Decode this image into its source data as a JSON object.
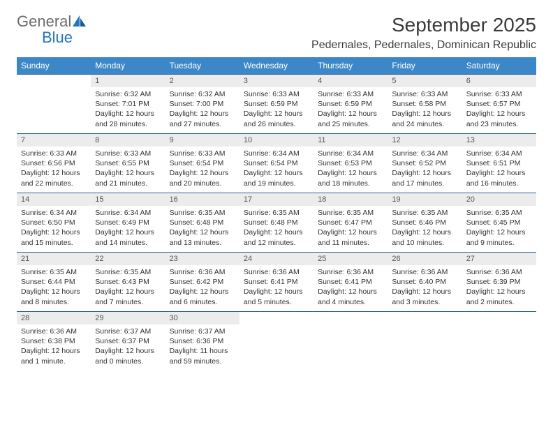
{
  "logo": {
    "text1": "General",
    "text2": "Blue"
  },
  "title": "September 2025",
  "location": "Pedernales, Pedernales, Dominican Republic",
  "colors": {
    "header_bg": "#3b87c8",
    "header_text": "#ffffff",
    "daynum_bg": "#ececec",
    "border": "#2f5f8f",
    "logo_gray": "#6b6b6b",
    "logo_blue": "#2176c1",
    "text": "#333333"
  },
  "day_names": [
    "Sunday",
    "Monday",
    "Tuesday",
    "Wednesday",
    "Thursday",
    "Friday",
    "Saturday"
  ],
  "weeks": [
    [
      {
        "n": "",
        "sunrise": "",
        "sunset": "",
        "daylight": ""
      },
      {
        "n": "1",
        "sunrise": "Sunrise: 6:32 AM",
        "sunset": "Sunset: 7:01 PM",
        "daylight": "Daylight: 12 hours and 28 minutes."
      },
      {
        "n": "2",
        "sunrise": "Sunrise: 6:32 AM",
        "sunset": "Sunset: 7:00 PM",
        "daylight": "Daylight: 12 hours and 27 minutes."
      },
      {
        "n": "3",
        "sunrise": "Sunrise: 6:33 AM",
        "sunset": "Sunset: 6:59 PM",
        "daylight": "Daylight: 12 hours and 26 minutes."
      },
      {
        "n": "4",
        "sunrise": "Sunrise: 6:33 AM",
        "sunset": "Sunset: 6:59 PM",
        "daylight": "Daylight: 12 hours and 25 minutes."
      },
      {
        "n": "5",
        "sunrise": "Sunrise: 6:33 AM",
        "sunset": "Sunset: 6:58 PM",
        "daylight": "Daylight: 12 hours and 24 minutes."
      },
      {
        "n": "6",
        "sunrise": "Sunrise: 6:33 AM",
        "sunset": "Sunset: 6:57 PM",
        "daylight": "Daylight: 12 hours and 23 minutes."
      }
    ],
    [
      {
        "n": "7",
        "sunrise": "Sunrise: 6:33 AM",
        "sunset": "Sunset: 6:56 PM",
        "daylight": "Daylight: 12 hours and 22 minutes."
      },
      {
        "n": "8",
        "sunrise": "Sunrise: 6:33 AM",
        "sunset": "Sunset: 6:55 PM",
        "daylight": "Daylight: 12 hours and 21 minutes."
      },
      {
        "n": "9",
        "sunrise": "Sunrise: 6:33 AM",
        "sunset": "Sunset: 6:54 PM",
        "daylight": "Daylight: 12 hours and 20 minutes."
      },
      {
        "n": "10",
        "sunrise": "Sunrise: 6:34 AM",
        "sunset": "Sunset: 6:54 PM",
        "daylight": "Daylight: 12 hours and 19 minutes."
      },
      {
        "n": "11",
        "sunrise": "Sunrise: 6:34 AM",
        "sunset": "Sunset: 6:53 PM",
        "daylight": "Daylight: 12 hours and 18 minutes."
      },
      {
        "n": "12",
        "sunrise": "Sunrise: 6:34 AM",
        "sunset": "Sunset: 6:52 PM",
        "daylight": "Daylight: 12 hours and 17 minutes."
      },
      {
        "n": "13",
        "sunrise": "Sunrise: 6:34 AM",
        "sunset": "Sunset: 6:51 PM",
        "daylight": "Daylight: 12 hours and 16 minutes."
      }
    ],
    [
      {
        "n": "14",
        "sunrise": "Sunrise: 6:34 AM",
        "sunset": "Sunset: 6:50 PM",
        "daylight": "Daylight: 12 hours and 15 minutes."
      },
      {
        "n": "15",
        "sunrise": "Sunrise: 6:34 AM",
        "sunset": "Sunset: 6:49 PM",
        "daylight": "Daylight: 12 hours and 14 minutes."
      },
      {
        "n": "16",
        "sunrise": "Sunrise: 6:35 AM",
        "sunset": "Sunset: 6:48 PM",
        "daylight": "Daylight: 12 hours and 13 minutes."
      },
      {
        "n": "17",
        "sunrise": "Sunrise: 6:35 AM",
        "sunset": "Sunset: 6:48 PM",
        "daylight": "Daylight: 12 hours and 12 minutes."
      },
      {
        "n": "18",
        "sunrise": "Sunrise: 6:35 AM",
        "sunset": "Sunset: 6:47 PM",
        "daylight": "Daylight: 12 hours and 11 minutes."
      },
      {
        "n": "19",
        "sunrise": "Sunrise: 6:35 AM",
        "sunset": "Sunset: 6:46 PM",
        "daylight": "Daylight: 12 hours and 10 minutes."
      },
      {
        "n": "20",
        "sunrise": "Sunrise: 6:35 AM",
        "sunset": "Sunset: 6:45 PM",
        "daylight": "Daylight: 12 hours and 9 minutes."
      }
    ],
    [
      {
        "n": "21",
        "sunrise": "Sunrise: 6:35 AM",
        "sunset": "Sunset: 6:44 PM",
        "daylight": "Daylight: 12 hours and 8 minutes."
      },
      {
        "n": "22",
        "sunrise": "Sunrise: 6:35 AM",
        "sunset": "Sunset: 6:43 PM",
        "daylight": "Daylight: 12 hours and 7 minutes."
      },
      {
        "n": "23",
        "sunrise": "Sunrise: 6:36 AM",
        "sunset": "Sunset: 6:42 PM",
        "daylight": "Daylight: 12 hours and 6 minutes."
      },
      {
        "n": "24",
        "sunrise": "Sunrise: 6:36 AM",
        "sunset": "Sunset: 6:41 PM",
        "daylight": "Daylight: 12 hours and 5 minutes."
      },
      {
        "n": "25",
        "sunrise": "Sunrise: 6:36 AM",
        "sunset": "Sunset: 6:41 PM",
        "daylight": "Daylight: 12 hours and 4 minutes."
      },
      {
        "n": "26",
        "sunrise": "Sunrise: 6:36 AM",
        "sunset": "Sunset: 6:40 PM",
        "daylight": "Daylight: 12 hours and 3 minutes."
      },
      {
        "n": "27",
        "sunrise": "Sunrise: 6:36 AM",
        "sunset": "Sunset: 6:39 PM",
        "daylight": "Daylight: 12 hours and 2 minutes."
      }
    ],
    [
      {
        "n": "28",
        "sunrise": "Sunrise: 6:36 AM",
        "sunset": "Sunset: 6:38 PM",
        "daylight": "Daylight: 12 hours and 1 minute."
      },
      {
        "n": "29",
        "sunrise": "Sunrise: 6:37 AM",
        "sunset": "Sunset: 6:37 PM",
        "daylight": "Daylight: 12 hours and 0 minutes."
      },
      {
        "n": "30",
        "sunrise": "Sunrise: 6:37 AM",
        "sunset": "Sunset: 6:36 PM",
        "daylight": "Daylight: 11 hours and 59 minutes."
      },
      {
        "n": "",
        "sunrise": "",
        "sunset": "",
        "daylight": ""
      },
      {
        "n": "",
        "sunrise": "",
        "sunset": "",
        "daylight": ""
      },
      {
        "n": "",
        "sunrise": "",
        "sunset": "",
        "daylight": ""
      },
      {
        "n": "",
        "sunrise": "",
        "sunset": "",
        "daylight": ""
      }
    ]
  ]
}
